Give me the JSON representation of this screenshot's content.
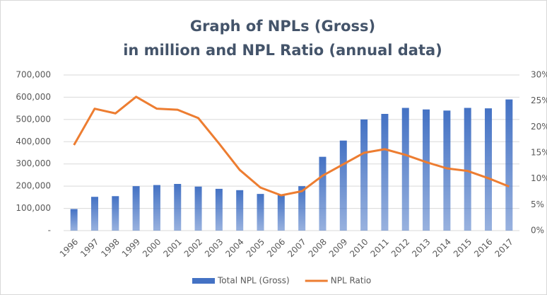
{
  "chart_data": {
    "type": "bar_line",
    "title": [
      "Graph of NPLs (Gross)",
      "in million and NPL Ratio (annual data)"
    ],
    "categories": [
      "1996",
      "1997",
      "1998",
      "1999",
      "2000",
      "2001",
      "2002",
      "2003",
      "2004",
      "2005",
      "2006",
      "2007",
      "2008",
      "2009",
      "2010",
      "2011",
      "2012",
      "2013",
      "2014",
      "2015",
      "2016",
      "2017"
    ],
    "series": [
      {
        "name": "Total NPL (Gross)",
        "type": "bar",
        "color": "#4472c4",
        "axis": "y",
        "values": [
          97000,
          152000,
          155000,
          200000,
          205000,
          210000,
          198000,
          188000,
          182000,
          165000,
          160000,
          200000,
          332000,
          405000,
          500000,
          525000,
          552000,
          545000,
          540000,
          552000,
          550000,
          590000
        ]
      },
      {
        "name": "NPL Ratio",
        "type": "line",
        "color": "#ed7d31",
        "axis": "y2",
        "values": [
          16.5,
          23.5,
          22.6,
          25.8,
          23.5,
          23.3,
          21.7,
          16.8,
          11.7,
          8.3,
          6.8,
          7.6,
          10.6,
          12.8,
          15,
          15.7,
          14.6,
          13.2,
          12,
          11.5,
          10.1,
          8.5
        ]
      }
    ],
    "ylim": [
      0,
      700000
    ],
    "yticks": [
      {
        "value": 0,
        "label": "-"
      },
      {
        "value": 100000,
        "label": "100,000"
      },
      {
        "value": 200000,
        "label": "200,000"
      },
      {
        "value": 300000,
        "label": "300,000"
      },
      {
        "value": 400000,
        "label": "400,000"
      },
      {
        "value": 500000,
        "label": "500,000"
      },
      {
        "value": 600000,
        "label": "600,000"
      },
      {
        "value": 700000,
        "label": "700,000"
      }
    ],
    "y2lim": [
      0,
      30
    ],
    "y2ticks": [
      {
        "value": 0,
        "label": "0%"
      },
      {
        "value": 5,
        "label": "5%"
      },
      {
        "value": 10,
        "label": "10%"
      },
      {
        "value": 15,
        "label": "15%"
      },
      {
        "value": 20,
        "label": "20%"
      },
      {
        "value": 25,
        "label": "25%"
      },
      {
        "value": 30,
        "label": "30%"
      }
    ],
    "grid": true,
    "legend": "bottom"
  }
}
